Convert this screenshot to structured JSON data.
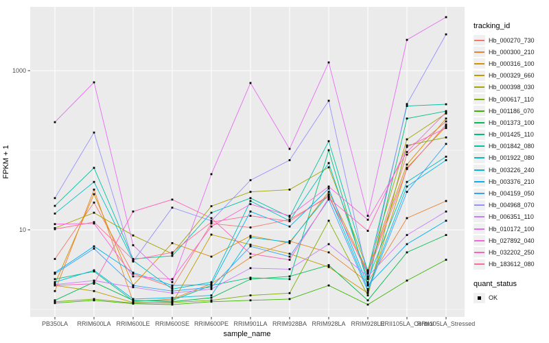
{
  "figure": {
    "y_axis": {
      "title": "FPKM + 1",
      "ticks": [
        {
          "label": "10",
          "value": 10
        },
        {
          "label": "1000",
          "value": 1000
        }
      ],
      "minor_values": [
        1,
        100
      ]
    },
    "x_axis": {
      "title": "sample_name"
    },
    "legend": {
      "tracking_title": "tracking_id",
      "quant_title": "quant_status",
      "quant_item_label": "OK"
    },
    "colors": {
      "panel_bg": "#EBEBEB",
      "grid": "#FFFFFF",
      "tick_label": "#4D4D4D",
      "axis_title": "#000000",
      "marker": "#000000",
      "legend_key_bg": "#F0F0F0"
    }
  },
  "chart_data": {
    "type": "line",
    "x_type": "categorical",
    "y_scale": "log10",
    "title": "",
    "xlabel": "sample_name",
    "ylabel": "FPKM + 1",
    "y_ticks_labeled": [
      10,
      1000
    ],
    "y_minor_gridlines": [
      1,
      100
    ],
    "ylim": [
      0.65,
      7000
    ],
    "marker": "black-square",
    "legend_position": "right",
    "grid": true,
    "categories": [
      "PB350LA",
      "RRIM600LA",
      "RRIM600LE",
      "RRIM600SE",
      "RRIM600PE",
      "RRIM901LA",
      "RRIM928BA",
      "RRIM928LA",
      "RRIM928LE",
      "RRII105LA_Control",
      "RRII105LA_Stressed"
    ],
    "series": [
      {
        "name": "Hb_000270_730",
        "color": "#F8766D",
        "values": [
          4.3,
          22,
          2.8,
          1.9,
          12,
          10.7,
          13.5,
          26,
          2.9,
          88,
          230
        ]
      },
      {
        "name": "Hb_000300_210",
        "color": "#EA8331",
        "values": [
          1.7,
          32,
          1.25,
          1.35,
          2.1,
          4.5,
          7.2,
          5.2,
          2.2,
          14,
          23
        ]
      },
      {
        "name": "Hb_000316_100",
        "color": "#D89000",
        "values": [
          2.1,
          28,
          2.0,
          6.8,
          4.6,
          8.4,
          6.8,
          30,
          3.0,
          66,
          250
        ]
      },
      {
        "name": "Hb_000329_660",
        "color": "#C09B00",
        "values": [
          2.0,
          1.7,
          1.22,
          1.2,
          8.7,
          6.5,
          5.0,
          3.4,
          1.6,
          60,
          200
        ]
      },
      {
        "name": "Hb_000398_030",
        "color": "#A3A500",
        "values": [
          10.5,
          16.4,
          8.5,
          5.0,
          19.8,
          30,
          32,
          61,
          3.1,
          137,
          290
        ]
      },
      {
        "name": "Hb_000617_110",
        "color": "#7CAE00",
        "values": [
          1.25,
          1.35,
          1.2,
          1.22,
          1.3,
          1.5,
          1.6,
          13,
          1.5,
          115,
          145
        ]
      },
      {
        "name": "Hb_001186_070",
        "color": "#39B600",
        "values": [
          1.2,
          1.3,
          1.18,
          1.15,
          1.25,
          1.3,
          1.35,
          2.0,
          1.15,
          2.3,
          4.2
        ]
      },
      {
        "name": "Hb_001373_100",
        "color": "#00BB4E",
        "values": [
          1.3,
          2.2,
          1.3,
          1.25,
          1.4,
          2.4,
          2.6,
          3.6,
          1.3,
          5.2,
          8.6
        ]
      },
      {
        "name": "Hb_001425_110",
        "color": "#00BF7D",
        "values": [
          2.4,
          3.0,
          1.28,
          1.3,
          2.0,
          2.5,
          2.4,
          100,
          2.1,
          250,
          310
        ]
      },
      {
        "name": "Hb_001842_080",
        "color": "#00C1A3",
        "values": [
          20,
          60,
          4.3,
          4.7,
          16.4,
          25,
          14.5,
          130,
          3.0,
          360,
          378
        ]
      },
      {
        "name": "Hb_001922_080",
        "color": "#00BFC4",
        "values": [
          16,
          40,
          4.1,
          1.8,
          2.2,
          23,
          13,
          69,
          2.4,
          40,
          83
        ]
      },
      {
        "name": "Hb_003226_240",
        "color": "#00BAE0",
        "values": [
          2.2,
          3.1,
          1.35,
          1.4,
          1.5,
          8.0,
          7.0,
          28,
          1.8,
          35,
          75
        ]
      },
      {
        "name": "Hb_003376_210",
        "color": "#00B0F6",
        "values": [
          2.9,
          6.2,
          2.9,
          2.0,
          2.05,
          17,
          11,
          33,
          2.0,
          6.6,
          13
        ]
      },
      {
        "name": "Hb_004159_050",
        "color": "#35A2FF",
        "values": [
          2.8,
          5.8,
          2.0,
          1.7,
          1.9,
          6.2,
          4.6,
          24,
          1.7,
          30,
          120
        ]
      },
      {
        "name": "Hb_004968_070",
        "color": "#9590FF",
        "values": [
          25,
          167,
          4.0,
          19,
          13,
          42,
          75,
          418,
          2.5,
          380,
          2860
        ]
      },
      {
        "name": "Hb_006351_110",
        "color": "#C77CFF",
        "values": [
          2.05,
          2.3,
          1.9,
          1.6,
          1.8,
          3.3,
          3.2,
          6.6,
          2.6,
          8.6,
          17
        ]
      },
      {
        "name": "Hb_010172_100",
        "color": "#E76BF3",
        "values": [
          225,
          713,
          6.4,
          2.2,
          50,
          700,
          104,
          1270,
          15,
          2440,
          4700
        ]
      },
      {
        "name": "Hb_027892_040",
        "color": "#FA62DB",
        "values": [
          11.8,
          12,
          2.6,
          2.4,
          11,
          21,
          15,
          35,
          13.4,
          95,
          300
        ]
      },
      {
        "name": "Hb_032202_250",
        "color": "#FF62BC",
        "values": [
          2.0,
          2.1,
          17,
          24,
          14,
          5.0,
          4.2,
          25,
          9.7,
          110,
          190
        ]
      },
      {
        "name": "Hb_183612_080",
        "color": "#FF6A98",
        "values": [
          10.2,
          12.5,
          4.2,
          5.2,
          12.5,
          15,
          12.8,
          27,
          2.8,
          58,
          210
        ]
      }
    ],
    "quant_status": "OK"
  }
}
